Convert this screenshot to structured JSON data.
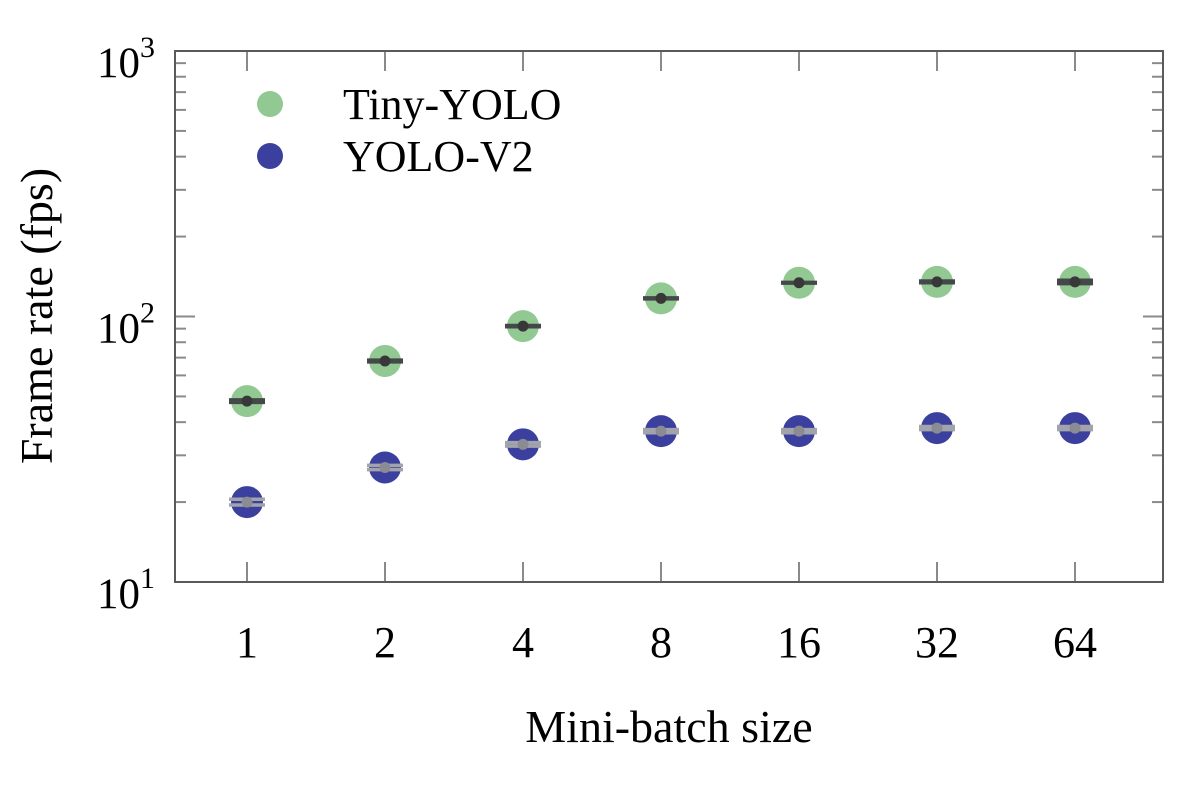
{
  "chart_data": {
    "type": "scatter",
    "x_categories": [
      "1",
      "2",
      "4",
      "8",
      "16",
      "32",
      "64"
    ],
    "xlabel": "Mini-batch size",
    "ylabel": "Frame rate (fps)",
    "x_scale": "log2-categorical",
    "y_scale": "log10",
    "ylim": [
      10,
      1000
    ],
    "grid": false,
    "y_ticks": [
      {
        "value": 1000,
        "base": "10",
        "exp": "3"
      },
      {
        "value": 100,
        "base": "10",
        "exp": "2"
      },
      {
        "value": 10,
        "base": "10",
        "exp": "1"
      }
    ],
    "legend": {
      "position": "upper-left"
    },
    "series": [
      {
        "name": "Tiny-YOLO",
        "color": "#92c892",
        "errbar_color": "#44484a",
        "dot_color": "#383838",
        "values": [
          48,
          68,
          92,
          117,
          134,
          135,
          135
        ],
        "errors": [
          0.5,
          0.5,
          0.5,
          0.5,
          0.5,
          1,
          2
        ]
      },
      {
        "name": "YOLO-V2",
        "color": "#3b409e",
        "errbar_color": "#a3a3ab",
        "dot_color": "#8b8b93",
        "values": [
          20,
          27,
          33,
          37,
          37,
          38,
          38
        ],
        "errors": [
          0.5,
          0.5,
          0.5,
          0.5,
          0.5,
          0.5,
          0.5
        ]
      }
    ],
    "axis": {
      "spine_color": "#5a5a5a",
      "tick_color": "#8a8a8a",
      "text_color": "#000000"
    }
  }
}
